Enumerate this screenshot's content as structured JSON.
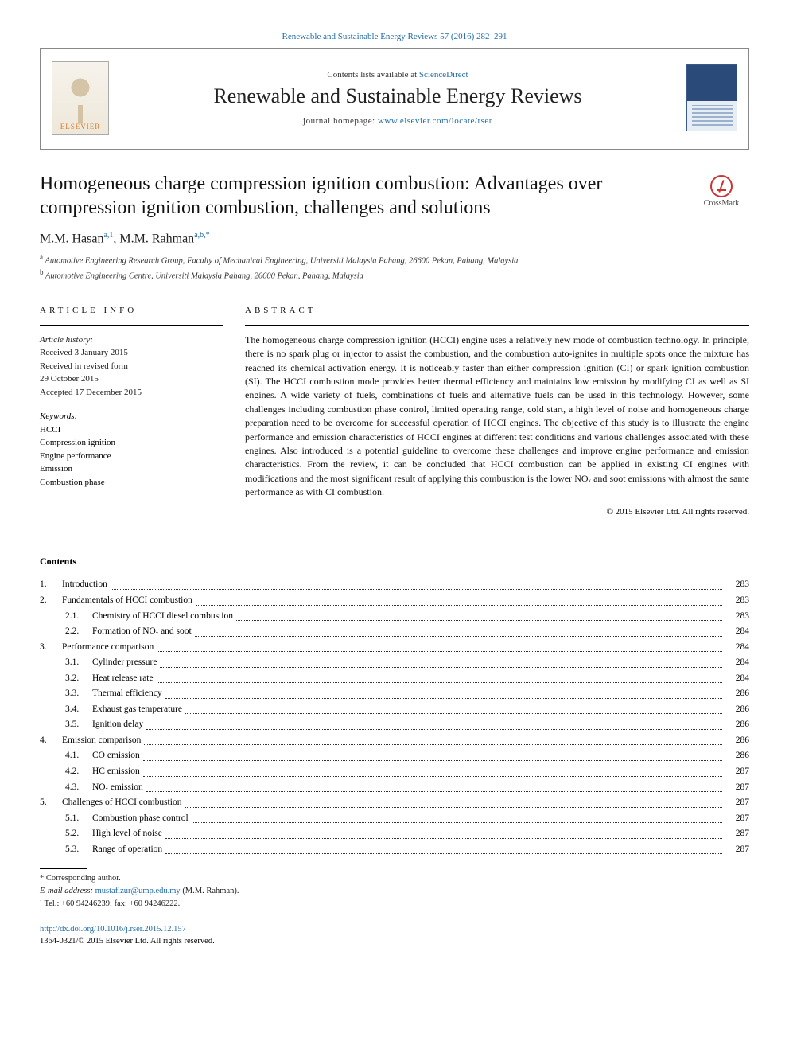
{
  "colors": {
    "link": "#1e6ba8",
    "text": "#000000",
    "rule": "#000000",
    "elsevier_orange": "#d97a2b",
    "crossmark_red": "#cc3333",
    "cover_blue": "#2a4a7a"
  },
  "typography": {
    "body_font": "Georgia, 'Times New Roman', serif",
    "journal_name_fontsize": 26,
    "article_title_fontsize": 24,
    "abstract_fontsize": 12,
    "toc_fontsize": 11.5
  },
  "top_link": "Renewable and Sustainable Energy Reviews 57 (2016) 282–291",
  "header": {
    "contents_prefix": "Contents lists available at ",
    "contents_link": "ScienceDirect",
    "journal_name": "Renewable and Sustainable Energy Reviews",
    "homepage_prefix": "journal homepage: ",
    "homepage_link": "www.elsevier.com/locate/rser",
    "elsevier_label": "ELSEVIER"
  },
  "crossmark_label": "CrossMark",
  "article": {
    "title": "Homogeneous charge compression ignition combustion: Advantages over compression ignition combustion, challenges and solutions",
    "authors_html": "M.M. Hasan",
    "author1_sup": "a,1",
    "author2": "M.M. Rahman",
    "author2_sup": "a,b,*",
    "affiliations": [
      {
        "sup": "a",
        "text": "Automotive Engineering Research Group, Faculty of Mechanical Engineering, Universiti Malaysia Pahang, 26600 Pekan, Pahang, Malaysia"
      },
      {
        "sup": "b",
        "text": "Automotive Engineering Centre, Universiti Malaysia Pahang, 26600 Pekan, Pahang, Malaysia"
      }
    ]
  },
  "article_info": {
    "heading": "ARTICLE INFO",
    "history_label": "Article history:",
    "received": "Received 3 January 2015",
    "revised1": "Received in revised form",
    "revised2": "29 October 2015",
    "accepted": "Accepted 17 December 2015",
    "keywords_label": "Keywords:",
    "keywords": [
      "HCCI",
      "Compression ignition",
      "Engine performance",
      "Emission",
      "Combustion phase"
    ]
  },
  "abstract": {
    "heading": "ABSTRACT",
    "text": "The homogeneous charge compression ignition (HCCI) engine uses a relatively new mode of combustion technology. In principle, there is no spark plug or injector to assist the combustion, and the combustion auto-ignites in multiple spots once the mixture has reached its chemical activation energy. It is noticeably faster than either compression ignition (CI) or spark ignition combustion (SI). The HCCI combustion mode provides better thermal efficiency and maintains low emission by modifying CI as well as SI engines. A wide variety of fuels, combinations of fuels and alternative fuels can be used in this technology. However, some challenges including combustion phase control, limited operating range, cold start, a high level of noise and homogeneous charge preparation need to be overcome for successful operation of HCCI engines. The objective of this study is to illustrate the engine performance and emission characteristics of HCCI engines at different test conditions and various challenges associated with these engines. Also introduced is a potential guideline to overcome these challenges and improve engine performance and emission characteristics. From the review, it can be concluded that HCCI combustion can be applied in existing CI engines with modifications and the most significant result of applying this combustion is the lower NOₓ and soot emissions with almost the same performance as with CI combustion.",
    "copyright": "© 2015 Elsevier Ltd. All rights reserved."
  },
  "contents": {
    "heading": "Contents",
    "items": [
      {
        "num": "1.",
        "title": "Introduction",
        "page": "283"
      },
      {
        "num": "2.",
        "title": "Fundamentals of HCCI combustion",
        "page": "283"
      },
      {
        "sub": true,
        "num": "2.1.",
        "title": "Chemistry of HCCI diesel combustion",
        "page": "283"
      },
      {
        "sub": true,
        "num": "2.2.",
        "title": "Formation of NOₓ and soot",
        "page": "284"
      },
      {
        "num": "3.",
        "title": "Performance comparison",
        "page": "284"
      },
      {
        "sub": true,
        "num": "3.1.",
        "title": "Cylinder pressure",
        "page": "284"
      },
      {
        "sub": true,
        "num": "3.2.",
        "title": "Heat release rate",
        "page": "284"
      },
      {
        "sub": true,
        "num": "3.3.",
        "title": "Thermal efficiency",
        "page": "286"
      },
      {
        "sub": true,
        "num": "3.4.",
        "title": "Exhaust gas temperature",
        "page": "286"
      },
      {
        "sub": true,
        "num": "3.5.",
        "title": "Ignition delay",
        "page": "286"
      },
      {
        "num": "4.",
        "title": "Emission comparison",
        "page": "286"
      },
      {
        "sub": true,
        "num": "4.1.",
        "title": "CO emission",
        "page": "286"
      },
      {
        "sub": true,
        "num": "4.2.",
        "title": "HC emission",
        "page": "287"
      },
      {
        "sub": true,
        "num": "4.3.",
        "title": "NOₓ emission",
        "page": "287"
      },
      {
        "num": "5.",
        "title": "Challenges of HCCI combustion",
        "page": "287"
      },
      {
        "sub": true,
        "num": "5.1.",
        "title": "Combustion phase control",
        "page": "287"
      },
      {
        "sub": true,
        "num": "5.2.",
        "title": "High level of noise",
        "page": "287"
      },
      {
        "sub": true,
        "num": "5.3.",
        "title": "Range of operation",
        "page": "287"
      }
    ]
  },
  "footnotes": {
    "corr": "* Corresponding author.",
    "email_label": "E-mail address: ",
    "email": "mustafizur@ump.edu.my",
    "email_suffix": " (M.M. Rahman).",
    "tel": "¹ Tel.: +60 94246239; fax: +60 94246222."
  },
  "doi": {
    "url": "http://dx.doi.org/10.1016/j.rser.2015.12.157",
    "issn_line": "1364-0321/© 2015 Elsevier Ltd. All rights reserved."
  }
}
